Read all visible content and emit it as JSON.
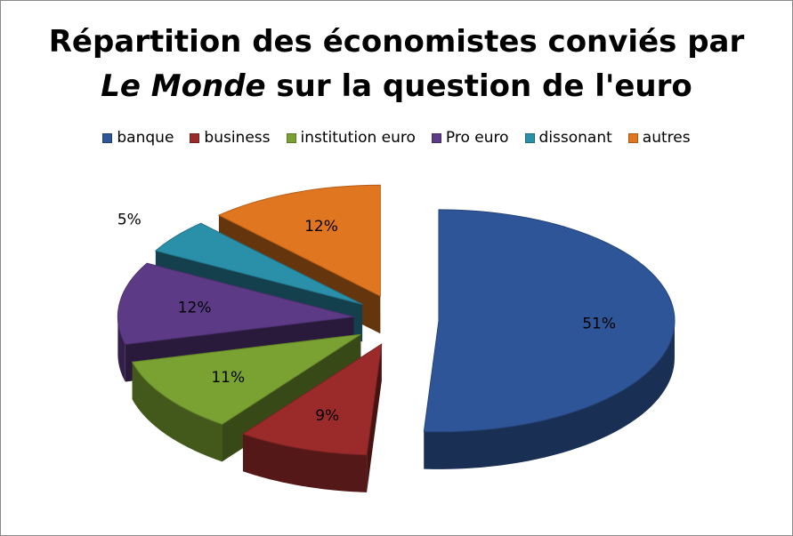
{
  "title": {
    "line1": "Répartition des économistes conviés par",
    "line2_italic": "Le Monde",
    "line2_rest": " sur la question de l'euro"
  },
  "chart_data": {
    "type": "pie",
    "title": "Répartition des économistes conviés par Le Monde sur la question de l'euro",
    "legend_position": "top",
    "slices": [
      {
        "name": "banque",
        "value": 51,
        "label": "51%",
        "color": "#2e5597"
      },
      {
        "name": "business",
        "value": 9,
        "label": "9%",
        "color": "#9b2b2b"
      },
      {
        "name": "institution euro",
        "value": 11,
        "label": "11%",
        "color": "#7aa232"
      },
      {
        "name": "Pro euro",
        "value": 12,
        "label": "12%",
        "color": "#5c3a86"
      },
      {
        "name": "dissonant",
        "value": 5,
        "label": "5%",
        "color": "#2a8fa8"
      },
      {
        "name": "autres",
        "value": 12,
        "label": "12%",
        "color": "#e0761f"
      }
    ]
  }
}
